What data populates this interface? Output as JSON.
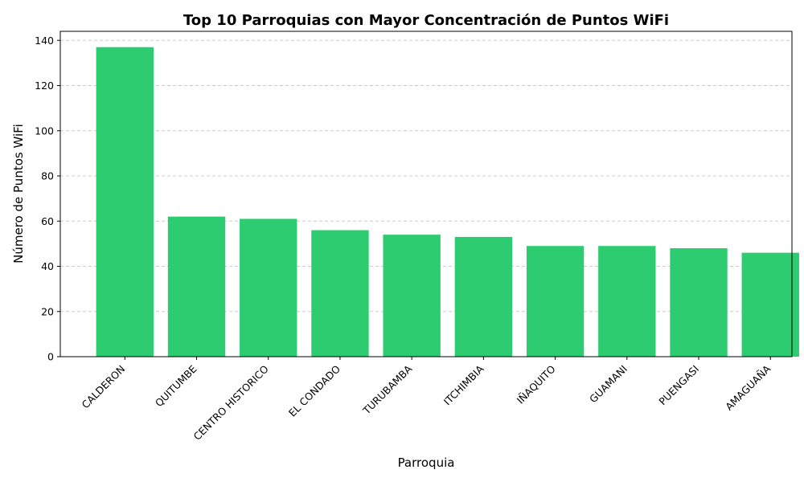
{
  "chart_data": {
    "type": "bar",
    "title": "Top 10 Parroquias con Mayor Concentración de Puntos WiFi",
    "xlabel": "Parroquia",
    "ylabel": "Número de Puntos WiFi",
    "categories": [
      "CALDERON",
      "QUITUMBE",
      "CENTRO HISTORICO",
      "EL CONDADO",
      "TURUBAMBA",
      "ITCHIMBIA",
      "IÑAQUITO",
      "GUAMANI",
      "PUENGASI",
      "AMAGUAÑA"
    ],
    "values": [
      137,
      62,
      61,
      56,
      54,
      53,
      49,
      49,
      48,
      46
    ],
    "ylim": [
      0,
      144
    ],
    "yticks": [
      0,
      20,
      40,
      60,
      80,
      100,
      120,
      140
    ],
    "grid": "y-dashed",
    "bar_color": "#2ecc71"
  }
}
